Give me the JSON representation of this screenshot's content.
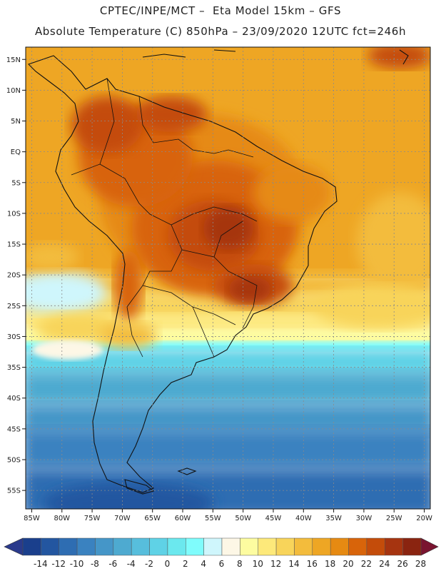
{
  "header": {
    "line1": "CPTEC/INPE/MCT –  Eta Model 15km – GFS",
    "line2": "Absolute Temperature (C) 850hPa – 23/09/2020 12UTC fct=246h"
  },
  "lat_axis": {
    "labels": [
      "15N",
      "10N",
      "5N",
      "EQ",
      "5S",
      "10S",
      "15S",
      "20S",
      "25S",
      "30S",
      "35S",
      "40S",
      "45S",
      "50S",
      "55S"
    ],
    "values": [
      15,
      10,
      5,
      0,
      -5,
      -10,
      -15,
      -20,
      -25,
      -30,
      -35,
      -40,
      -45,
      -50,
      -55
    ],
    "range": [
      17,
      -58
    ]
  },
  "lon_axis": {
    "labels": [
      "85W",
      "80W",
      "75W",
      "70W",
      "65W",
      "60W",
      "55W",
      "50W",
      "45W",
      "40W",
      "35W",
      "30W",
      "25W",
      "20W"
    ],
    "values": [
      -85,
      -80,
      -75,
      -70,
      -65,
      -60,
      -55,
      -50,
      -45,
      -40,
      -35,
      -30,
      -25,
      -20
    ],
    "range": [
      -86,
      -19
    ]
  },
  "colorbar": {
    "labels": [
      "-14",
      "-12",
      "-10",
      "-8",
      "-6",
      "-4",
      "-2",
      "0",
      "2",
      "4",
      "6",
      "8",
      "10",
      "12",
      "14",
      "16",
      "18",
      "20",
      "22",
      "24",
      "26",
      "28"
    ],
    "colors": [
      "#1a3f8c",
      "#2356a0",
      "#2e6db2",
      "#3a82c0",
      "#4596c8",
      "#4eaad0",
      "#57bedc",
      "#5fd2e6",
      "#6be8ee",
      "#7ffcfc",
      "#cff6fc",
      "#fdf7e6",
      "#fdfca0",
      "#fde97a",
      "#f8d45a",
      "#f3bc3c",
      "#eea624",
      "#e68a12",
      "#d8640a",
      "#c44c0a",
      "#a63410",
      "#8a2410"
    ],
    "under_color": "#2a3a8c",
    "over_color": "#7a1430"
  }
}
